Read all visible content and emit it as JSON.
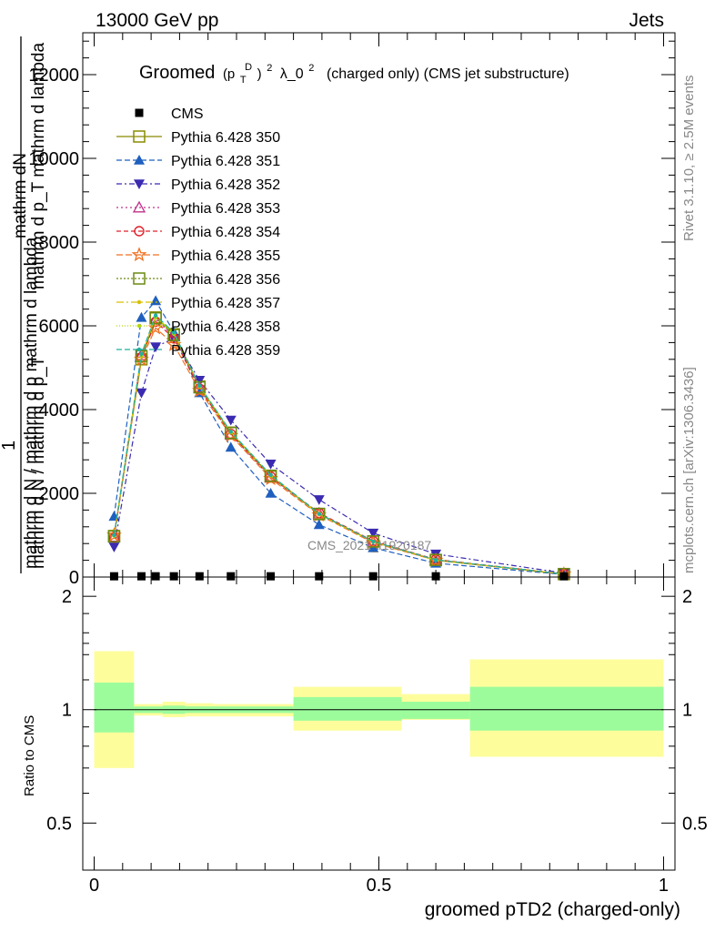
{
  "header": {
    "energy_label": "13000 GeV pp",
    "process_label": "Jets"
  },
  "side_labels": {
    "rivet": "Rivet 3.1.10, ≥ 2.5M events",
    "mcplots": "mcplots.cern.ch [arXiv:1306.3436]"
  },
  "watermark": "CMS_2021_I1920187",
  "chart_data": [
    {
      "type": "line",
      "title": {
        "main": "Groomed",
        "p": "(p",
        "sub_T": "T",
        "sup_D": "D",
        "sup_2a": ")",
        "sup_2b": "2",
        "lambda": "λ_0",
        "sup_2c": "2",
        "rest": "(charged only) (CMS jet substructure)"
      },
      "ylabel": {
        "numerator_line1": "mathrm dN",
        "numerator_line2": "mathrm d p_T mathrm d lambda",
        "one": "1",
        "denominator_line1": "mathrm d N / mathrm d p_T",
        "denominator_line2": "mathrm d N / mathrm d p mathrm d lambda",
        "sub_T": "T"
      },
      "xlim": [
        -0.02,
        1.02
      ],
      "ylim": [
        0,
        13000
      ],
      "y_ticks": [
        0,
        2000,
        4000,
        6000,
        8000,
        10000,
        12000
      ],
      "y_tick_labels": [
        "0",
        "2000",
        "4000",
        "6000",
        "8000",
        "10000",
        "12000"
      ],
      "x": [
        0.035,
        0.083,
        0.108,
        0.14,
        0.185,
        0.24,
        0.31,
        0.395,
        0.49,
        0.6,
        0.825
      ],
      "legend_position": "top-left",
      "series": [
        {
          "name": "CMS",
          "marker": "square-filled",
          "color": "#000000",
          "dash": "none",
          "values": [
            18,
            18,
            18,
            18,
            18,
            18,
            18,
            18,
            18,
            18,
            18
          ]
        },
        {
          "name": "Pythia 6.428 350",
          "marker": "square-open",
          "color": "#8b8b00",
          "dash": "solid",
          "values": [
            980,
            5200,
            6200,
            5800,
            4550,
            3450,
            2400,
            1500,
            850,
            400,
            70
          ]
        },
        {
          "name": "Pythia 6.428 351",
          "marker": "triangle-up-filled",
          "color": "#1f5fbf",
          "dash": "6,3",
          "values": [
            1450,
            6200,
            6600,
            5850,
            4400,
            3100,
            2000,
            1250,
            700,
            330,
            60
          ]
        },
        {
          "name": "Pythia 6.428 352",
          "marker": "triangle-down-filled",
          "color": "#3a2bb0",
          "dash": "6,3,2,3",
          "values": [
            720,
            4400,
            5500,
            5700,
            4700,
            3750,
            2700,
            1850,
            1050,
            550,
            95
          ]
        },
        {
          "name": "Pythia 6.428 353",
          "marker": "triangle-up-open",
          "color": "#c0308a",
          "dash": "2,3",
          "values": [
            960,
            5300,
            6150,
            5750,
            4520,
            3400,
            2380,
            1520,
            840,
            410,
            72
          ]
        },
        {
          "name": "Pythia 6.428 354",
          "marker": "circle-open",
          "color": "#e0202a",
          "dash": "5,3",
          "values": [
            940,
            5250,
            6100,
            5700,
            4500,
            3420,
            2400,
            1530,
            860,
            420,
            74
          ]
        },
        {
          "name": "Pythia 6.428 355",
          "marker": "star-open",
          "color": "#f07020",
          "dash": "7,3",
          "values": [
            1000,
            5200,
            5950,
            5550,
            4450,
            3380,
            2350,
            1480,
            820,
            400,
            70
          ]
        },
        {
          "name": "Pythia 6.428 356",
          "marker": "square-open",
          "color": "#6a8a10",
          "dash": "2,2",
          "values": [
            970,
            5280,
            6180,
            5780,
            4530,
            3440,
            2420,
            1510,
            850,
            410,
            72
          ]
        },
        {
          "name": "Pythia 6.428 357",
          "marker": "dot",
          "color": "#d8c000",
          "dash": "8,3,2,3",
          "values": [
            990,
            5300,
            6220,
            5820,
            4560,
            3460,
            2430,
            1500,
            840,
            405,
            71
          ]
        },
        {
          "name": "Pythia 6.428 358",
          "marker": "dot",
          "color": "#b8d800",
          "dash": "1,2",
          "values": [
            985,
            5290,
            6210,
            5810,
            4550,
            3450,
            2420,
            1505,
            845,
            408,
            72
          ]
        },
        {
          "name": "Pythia 6.428 359",
          "marker": "dot",
          "color": "#20b0a0",
          "dash": "6,3",
          "values": [
            1000,
            5330,
            6250,
            5840,
            4570,
            3470,
            2440,
            1510,
            850,
            410,
            73
          ]
        }
      ]
    },
    {
      "type": "area",
      "ylabel": "Ratio to CMS",
      "xlabel": "groomed pTD2 (charged-only)",
      "xlim": [
        -0.02,
        1.02
      ],
      "ylim": [
        0.375,
        2.25
      ],
      "y_log_scale": true,
      "y_ticks": [
        0.5,
        1,
        2
      ],
      "y_tick_labels": [
        "0.5",
        "1",
        "2"
      ],
      "x_ticks": [
        0,
        0.5,
        1
      ],
      "x_tick_labels": [
        "0",
        "0.5",
        "1"
      ],
      "bins": [
        {
          "x_low": 0.0,
          "x_high": 0.07,
          "stat_low": 0.87,
          "stat_high": 1.18,
          "total_low": 0.7,
          "total_high": 1.43
        },
        {
          "x_low": 0.07,
          "x_high": 0.12,
          "stat_low": 0.98,
          "stat_high": 1.02,
          "total_low": 0.965,
          "total_high": 1.035
        },
        {
          "x_low": 0.12,
          "x_high": 0.16,
          "stat_low": 0.975,
          "stat_high": 1.025,
          "total_low": 0.955,
          "total_high": 1.05
        },
        {
          "x_low": 0.16,
          "x_high": 0.21,
          "stat_low": 0.98,
          "stat_high": 1.02,
          "total_low": 0.96,
          "total_high": 1.04
        },
        {
          "x_low": 0.21,
          "x_high": 0.35,
          "stat_low": 0.98,
          "stat_high": 1.02,
          "total_low": 0.96,
          "total_high": 1.035
        },
        {
          "x_low": 0.35,
          "x_high": 0.54,
          "stat_low": 0.935,
          "stat_high": 1.08,
          "total_low": 0.88,
          "total_high": 1.15
        },
        {
          "x_low": 0.54,
          "x_high": 0.66,
          "stat_low": 0.945,
          "stat_high": 1.05,
          "total_low": 0.94,
          "total_high": 1.1
        },
        {
          "x_low": 0.66,
          "x_high": 1.0,
          "stat_low": 0.88,
          "stat_high": 1.15,
          "total_low": 0.75,
          "total_high": 1.36
        }
      ],
      "colors": {
        "stat": "#9cfc9c",
        "total": "#fdfd9c",
        "reference_line": "#000000"
      }
    }
  ]
}
